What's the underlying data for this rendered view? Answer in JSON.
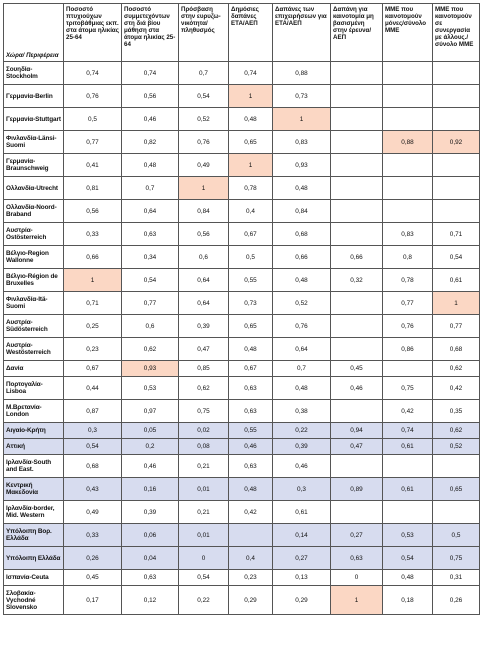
{
  "headers": [
    "Χώρα/ Περιφέρεια",
    "Ποσοστό πτυχιούχων τριτοβάθμιας εκπ. στα άτομα ηλικίας 25-64",
    "Ποσοστό συμμετεχόντων στη διά βίου μάθηση στα άτομα ηλικίας 25-64",
    "Πρόσβαση στην ευρυζω-νικότητα/ πληθυσμός",
    "Δημόσιες δαπάνες ΕΤΑ/ΑΕΠ",
    "Δαπάνες των επιχειρήσεων για ΕΤΑ/ΑΕΠ",
    "Δαπάνη για καινοτομία μη βασισμένη στην έρευνα/ΑΕΠ",
    "ΜΜΕ που καινοτομούν μόνες/σύνολο ΜΜΕ",
    "ΜΜΕ που καινοτομούν σε συνεργασία με άλλους./ σύνολο ΜΜΕ"
  ],
  "rows": [
    {
      "region": "Σουηδία-Stockholm",
      "values": [
        "0,74",
        "0,74",
        "0,7",
        "0,74",
        "0,88",
        "",
        "",
        ""
      ]
    },
    {
      "region": "Γερμανία-Berlin",
      "values": [
        "0,76",
        "0,56",
        "0,54",
        "1",
        "0,73",
        "",
        "",
        ""
      ]
    },
    {
      "region": "Γερμανία-Stuttgart",
      "values": [
        "0,5",
        "0,46",
        "0,52",
        "0,48",
        "1",
        "",
        "",
        ""
      ]
    },
    {
      "region": "Φινλανδία-Länsi-Suomi",
      "values": [
        "0,77",
        "0,82",
        "0,76",
        "0,65",
        "0,83",
        "",
        "0,88",
        "0,92"
      ]
    },
    {
      "region": "Γερμανία-Braunschweig",
      "values": [
        "0,41",
        "0,48",
        "0,49",
        "1",
        "0,93",
        "",
        "",
        ""
      ]
    },
    {
      "region": "Ολλανδία-Utrecht",
      "values": [
        "0,81",
        "0,7",
        "1",
        "0,78",
        "0,48",
        "",
        "",
        ""
      ]
    },
    {
      "region": "Ολλανδία-Noord-Braband",
      "values": [
        "0,56",
        "0,64",
        "0,84",
        "0,4",
        "0,84",
        "",
        "",
        ""
      ]
    },
    {
      "region": "Αυστρία-Ostösterreich",
      "values": [
        "0,33",
        "0,63",
        "0,56",
        "0,67",
        "0,68",
        "",
        "0,83",
        "0,71"
      ]
    },
    {
      "region": "Βέλγιο-Region Wallonne",
      "values": [
        "0,66",
        "0,34",
        "0,6",
        "0,5",
        "0,66",
        "0,66",
        "0,8",
        "0,54"
      ]
    },
    {
      "region": "Βέλγιο-Région de Bruxelles",
      "values": [
        "1",
        "0,54",
        "0,64",
        "0,55",
        "0,48",
        "0,32",
        "0,78",
        "0,61"
      ]
    },
    {
      "region": "Φινλανδία-Itä-Suomi",
      "values": [
        "0,71",
        "0,77",
        "0,64",
        "0,73",
        "0,52",
        "",
        "0,77",
        "1"
      ]
    },
    {
      "region": "Αυστρία-Südösterreich",
      "values": [
        "0,25",
        "0,6",
        "0,39",
        "0,65",
        "0,76",
        "",
        "0,76",
        "0,77"
      ]
    },
    {
      "region": "Αυστρία-Westösterreich",
      "values": [
        "0,23",
        "0,62",
        "0,47",
        "0,48",
        "0,64",
        "",
        "0,86",
        "0,68"
      ]
    },
    {
      "region": "Δανία",
      "values": [
        "0,67",
        "0,93",
        "0,85",
        "0,67",
        "0,7",
        "0,45",
        "",
        "0,62"
      ]
    },
    {
      "region": "Πορτογαλία-Lisboa",
      "values": [
        "0,44",
        "0,53",
        "0,62",
        "0,63",
        "0,48",
        "0,46",
        "0,75",
        "0,42"
      ]
    },
    {
      "region": "Μ.Βρετανία-London",
      "values": [
        "0,87",
        "0,97",
        "0,75",
        "0,63",
        "0,38",
        "",
        "0,42",
        "0,35"
      ]
    },
    {
      "region": "Αιγαίο-Κρήτη",
      "values": [
        "0,3",
        "0,05",
        "0,02",
        "0,55",
        "0,22",
        "0,94",
        "0,74",
        "0,62"
      ]
    },
    {
      "region": "Αττική",
      "values": [
        "0,54",
        "0,2",
        "0,08",
        "0,46",
        "0,39",
        "0,47",
        "0,61",
        "0,52"
      ]
    },
    {
      "region": "Ιρλανδία-South and East.",
      "values": [
        "0,68",
        "0,46",
        "0,21",
        "0,63",
        "0,46",
        "",
        "",
        ""
      ]
    },
    {
      "region": "Κεντρική Μακεδονία",
      "values": [
        "0,43",
        "0,16",
        "0,01",
        "0,48",
        "0,3",
        "0,89",
        "0,61",
        "0,65"
      ]
    },
    {
      "region": "Ιρλανδία-border, Mid. Western",
      "values": [
        "0,49",
        "0,39",
        "0,21",
        "0,42",
        "0,61",
        "",
        "",
        ""
      ]
    },
    {
      "region": "Υπόλοιπη Βορ. Ελλάδα",
      "values": [
        "0,33",
        "0,06",
        "0,01",
        "",
        "0,14",
        "0,27",
        "0,53",
        "0,5"
      ]
    },
    {
      "region": "Υπόλοιπη Ελλάδα",
      "values": [
        "0,26",
        "0,04",
        "0",
        "0,4",
        "0,27",
        "0,63",
        "0,54",
        "0,75"
      ]
    },
    {
      "region": "Ισπανία-Ceuta",
      "values": [
        "0,45",
        "0,63",
        "0,54",
        "0,23",
        "0,13",
        "0",
        "0,48",
        "0,31"
      ]
    },
    {
      "region": "Σλοβακία-Vychodné Slovensko",
      "values": [
        "0,17",
        "0,12",
        "0,22",
        "0,29",
        "0,29",
        "1",
        "0,18",
        "0,26"
      ]
    }
  ],
  "colors": {
    "highlight": "#fbd7c4",
    "greek_row": "#d7dcef",
    "border": "#555555"
  }
}
